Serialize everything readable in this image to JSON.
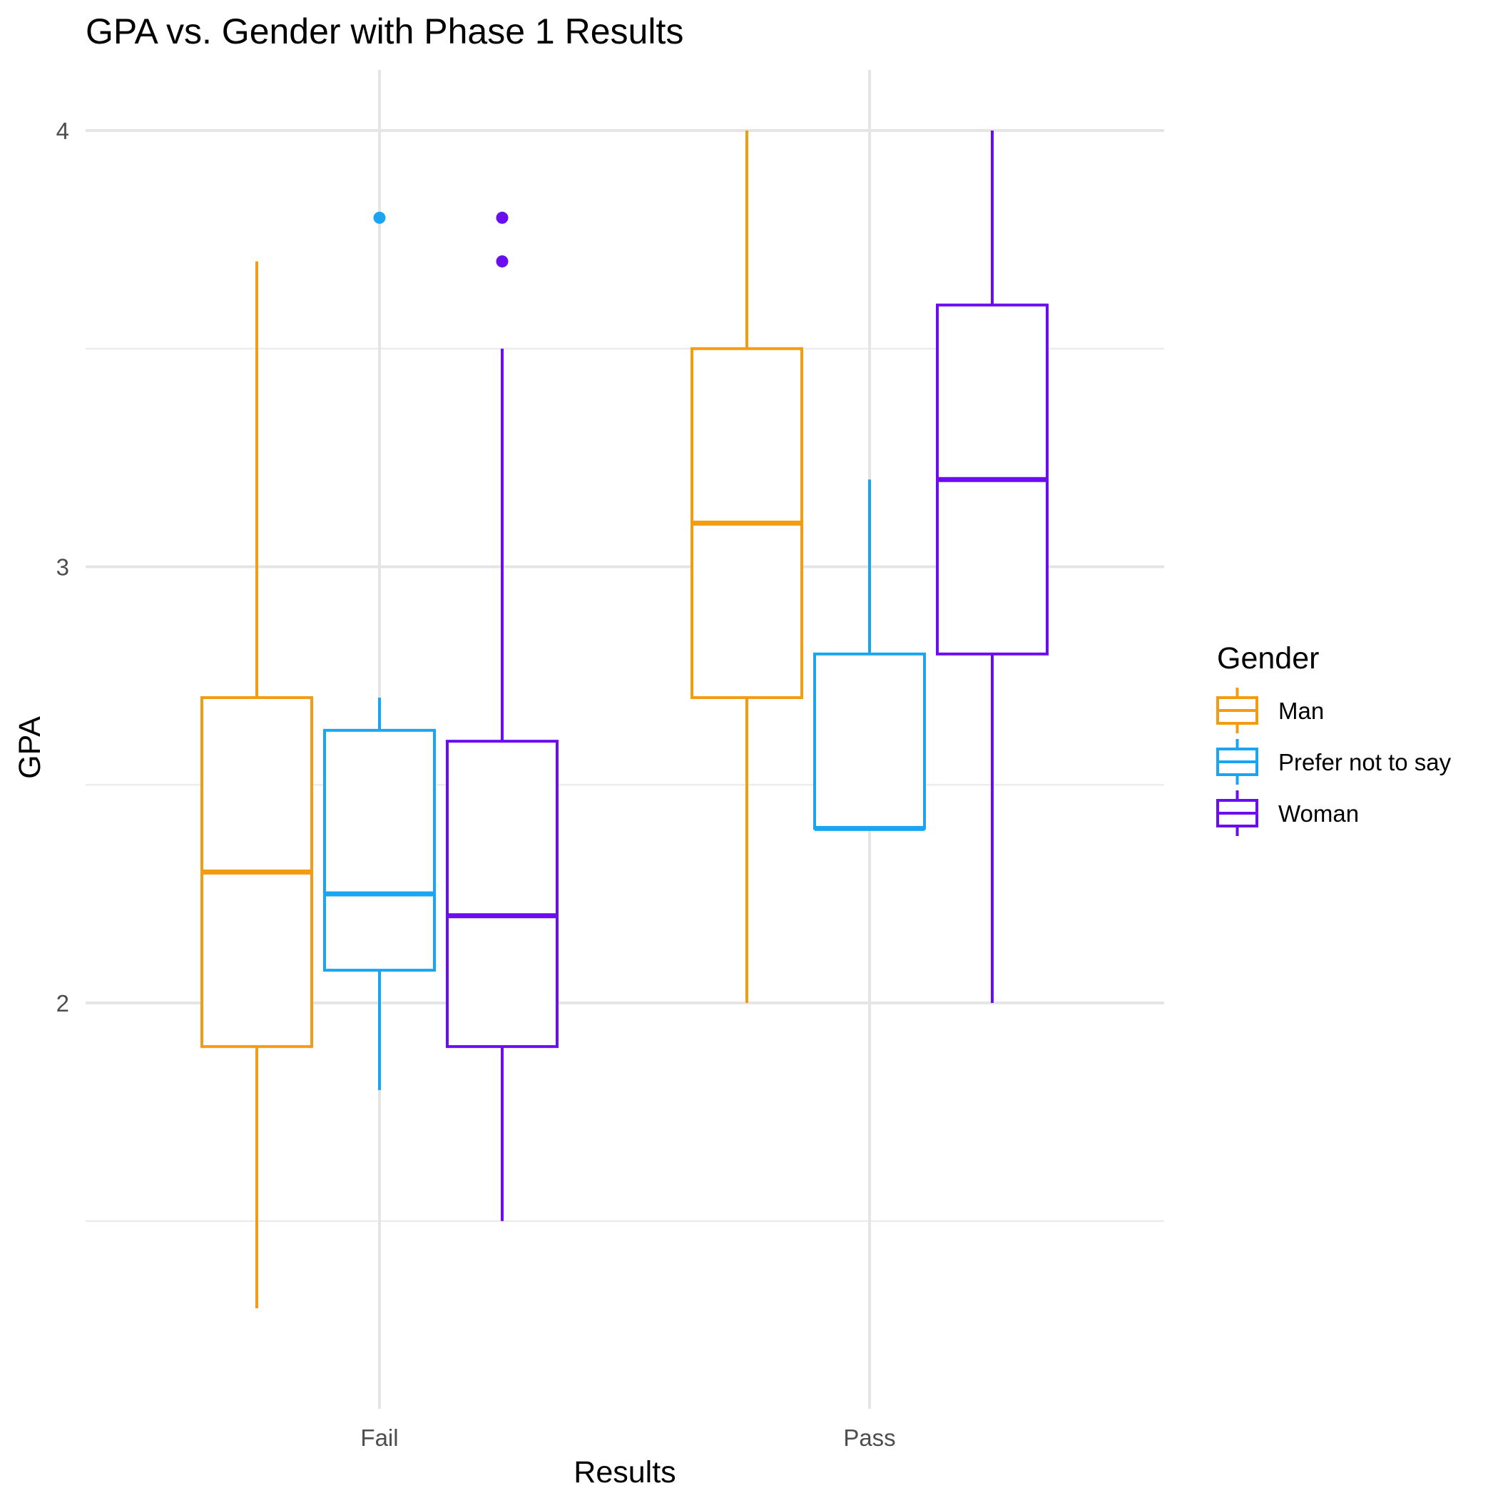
{
  "chart_data": {
    "type": "boxplot",
    "title": "GPA vs. Gender with Phase 1 Results",
    "xlabel": "Results",
    "ylabel": "GPA",
    "categories": [
      "Fail",
      "Pass"
    ],
    "ylim": [
      1.0,
      4.15
    ],
    "y_ticks": [
      2,
      3,
      4
    ],
    "y_tick_labels": [
      "2",
      "3",
      "4"
    ],
    "grid": true,
    "legend": {
      "title": "Gender",
      "position": "right"
    },
    "series": [
      {
        "name": "Man",
        "color": "#F39C12",
        "boxes": [
          {
            "category": "Fail",
            "min": 1.3,
            "q1": 1.9,
            "median": 2.3,
            "q3": 2.7,
            "max": 3.7,
            "outliers": []
          },
          {
            "category": "Pass",
            "min": 2.0,
            "q1": 2.7,
            "median": 3.1,
            "q3": 3.5,
            "max": 4.0,
            "outliers": []
          }
        ]
      },
      {
        "name": "Prefer not to say",
        "color": "#1AA5F2",
        "boxes": [
          {
            "category": "Fail",
            "min": 1.8,
            "q1": 2.075,
            "median": 2.25,
            "q3": 2.625,
            "max": 2.7,
            "outliers": [
              3.8
            ]
          },
          {
            "category": "Pass",
            "min": 2.4,
            "q1": 2.4,
            "median": 2.4,
            "q3": 2.8,
            "max": 3.2,
            "outliers": []
          }
        ]
      },
      {
        "name": "Woman",
        "color": "#6A0DF0",
        "boxes": [
          {
            "category": "Fail",
            "min": 1.5,
            "q1": 1.9,
            "median": 2.2,
            "q3": 2.6,
            "max": 3.5,
            "outliers": [
              3.8,
              3.7
            ]
          },
          {
            "category": "Pass",
            "min": 2.0,
            "q1": 2.8,
            "median": 3.2,
            "q3": 3.6,
            "max": 4.0,
            "outliers": []
          }
        ]
      }
    ]
  }
}
